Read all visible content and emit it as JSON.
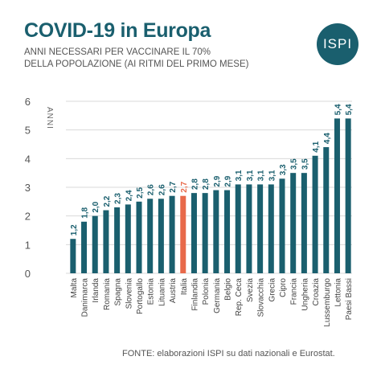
{
  "header": {
    "title": "COVID-19 in Europa",
    "subtitle_line1": "ANNI NECESSARI PER VACCINARE IL 70%",
    "subtitle_line2": "DELLA POPOLAZIONE (AI RITMI DEL PRIMO MESE)"
  },
  "logo": {
    "text": "ISPI"
  },
  "footer": {
    "source": "FONTE: elaborazioni ISPI su dati nazionali e Eurostat."
  },
  "colors": {
    "bar": "#1a5f6e",
    "highlight": "#e8694a",
    "title": "#1a5f6e",
    "grid": "#d9d9d9"
  },
  "chart_data": {
    "type": "bar",
    "title": "COVID-19 in Europa",
    "ylabel": "ANNI",
    "xlabel": "",
    "ylim": [
      0,
      6
    ],
    "yticks": [
      0,
      1,
      2,
      3,
      4,
      5,
      6
    ],
    "grid": true,
    "highlight_category": "Italia",
    "categories": [
      "Malta",
      "Danimarca",
      "Irlanda",
      "Romania",
      "Spagna",
      "Slovenia",
      "Portogallo",
      "Estonia",
      "Lituania",
      "Austria",
      "Italia",
      "Finlandia",
      "Polonia",
      "Germania",
      "Belgio",
      "Rep. Ceca",
      "Svezia",
      "Slovacchia",
      "Grecia",
      "Cipro",
      "Francia",
      "Ungheria",
      "Croazia",
      "Lussemburgo",
      "Lettonia",
      "Paesi Bassi"
    ],
    "values": [
      1.2,
      1.8,
      2.0,
      2.2,
      2.3,
      2.4,
      2.5,
      2.6,
      2.6,
      2.7,
      2.7,
      2.8,
      2.8,
      2.9,
      2.9,
      3.1,
      3.1,
      3.1,
      3.1,
      3.3,
      3.5,
      3.5,
      4.1,
      4.4,
      5.4,
      5.4
    ],
    "value_labels": [
      "1,2",
      "1,8",
      "2,0",
      "2,2",
      "2,3",
      "2,4",
      "2,5",
      "2,6",
      "2,6",
      "2,7",
      "2,7",
      "2,8",
      "2,8",
      "2,9",
      "2,9",
      "3,1",
      "3,1",
      "3,1",
      "3,1",
      "3,3",
      "3,5",
      "3,5",
      "4,1",
      "4,4",
      "5,4",
      "5,4"
    ]
  }
}
